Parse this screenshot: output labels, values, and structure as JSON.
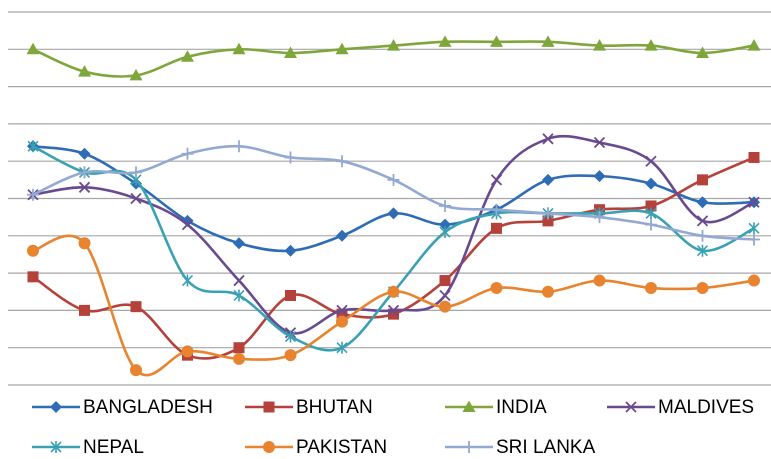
{
  "chart_data": {
    "type": "line",
    "categories": [
      null,
      null,
      null,
      null,
      null,
      null,
      null,
      null,
      null,
      null,
      null,
      null,
      null,
      null,
      null
    ],
    "ylim": [
      0,
      10
    ],
    "yticks": [
      0,
      1,
      2,
      3,
      4,
      5,
      6,
      7,
      8,
      9,
      10
    ],
    "grid": true,
    "smooth": true,
    "legend": "bottom",
    "series": [
      {
        "name": "BANGLADESH",
        "color": "#2e6db5",
        "marker": "diamond",
        "values": [
          6.4,
          6.2,
          5.4,
          4.4,
          3.8,
          3.6,
          4.0,
          4.6,
          4.3,
          4.7,
          5.5,
          5.6,
          5.4,
          4.9,
          4.9
        ]
      },
      {
        "name": "BHUTAN",
        "color": "#b5413b",
        "marker": "square",
        "values": [
          2.9,
          2.0,
          2.1,
          0.8,
          1.0,
          2.4,
          1.9,
          1.9,
          2.8,
          4.2,
          4.4,
          4.7,
          4.8,
          5.5,
          6.1
        ]
      },
      {
        "name": "INDIA",
        "color": "#7fa63b",
        "marker": "triangle",
        "values": [
          9.0,
          8.4,
          8.3,
          8.8,
          9.0,
          8.9,
          9.0,
          9.1,
          9.2,
          9.2,
          9.2,
          9.1,
          9.1,
          8.9,
          9.1
        ]
      },
      {
        "name": "MALDIVES",
        "color": "#6a4a8f",
        "marker": "x",
        "values": [
          5.1,
          5.3,
          5.0,
          4.3,
          2.8,
          1.4,
          2.0,
          2.0,
          2.4,
          5.5,
          6.6,
          6.5,
          6.0,
          4.4,
          4.9
        ]
      },
      {
        "name": "NEPAL",
        "color": "#3aa1b3",
        "marker": "star",
        "values": [
          6.4,
          5.7,
          5.5,
          2.8,
          2.4,
          1.3,
          1.0,
          2.5,
          4.1,
          4.6,
          4.6,
          4.6,
          4.6,
          3.6,
          4.2
        ]
      },
      {
        "name": "PAKISTAN",
        "color": "#e8842f",
        "marker": "circle",
        "values": [
          3.6,
          3.8,
          0.4,
          0.9,
          0.7,
          0.8,
          1.7,
          2.5,
          2.1,
          2.6,
          2.5,
          2.8,
          2.6,
          2.6,
          2.8
        ]
      },
      {
        "name": "SRI LANKA",
        "color": "#93a9d2",
        "marker": "plus",
        "values": [
          5.1,
          5.7,
          5.7,
          6.2,
          6.4,
          6.1,
          6.0,
          5.5,
          4.8,
          4.7,
          4.6,
          4.5,
          4.3,
          4.0,
          3.9
        ]
      }
    ]
  }
}
